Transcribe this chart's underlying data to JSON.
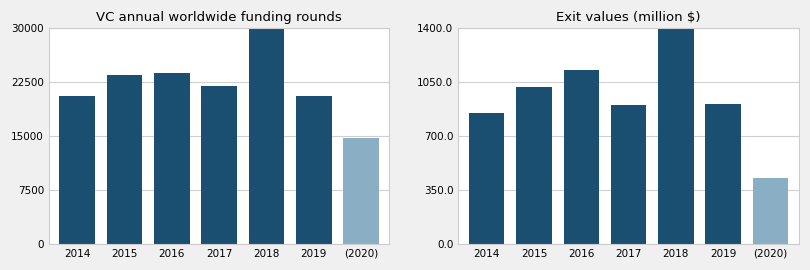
{
  "left_title": "VC annual worldwide funding rounds",
  "right_title": "Exit values (million $)",
  "categories": [
    "2014",
    "2015",
    "2016",
    "2017",
    "2018",
    "2019",
    "(2020)"
  ],
  "rounds_values": [
    20500,
    23500,
    23700,
    22000,
    29800,
    20500,
    14700
  ],
  "exit_values": [
    850,
    1020,
    1130,
    900,
    1400,
    910,
    430
  ],
  "rounds_ylim": [
    0,
    30000
  ],
  "exit_ylim": [
    0,
    1400
  ],
  "rounds_yticks": [
    0,
    7500,
    15000,
    22500,
    30000
  ],
  "exit_yticks": [
    0.0,
    350.0,
    700.0,
    1050.0,
    1400.0
  ],
  "bar_color_dark": "#1a4f72",
  "bar_color_light": "#8aafc4",
  "figure_facecolor": "#f0f0f0",
  "plot_facecolor": "#ffffff",
  "grid_color": "#d0d0d0",
  "spine_color": "#cccccc",
  "title_fontsize": 9.5,
  "tick_fontsize": 7.5,
  "bar_width": 0.75
}
